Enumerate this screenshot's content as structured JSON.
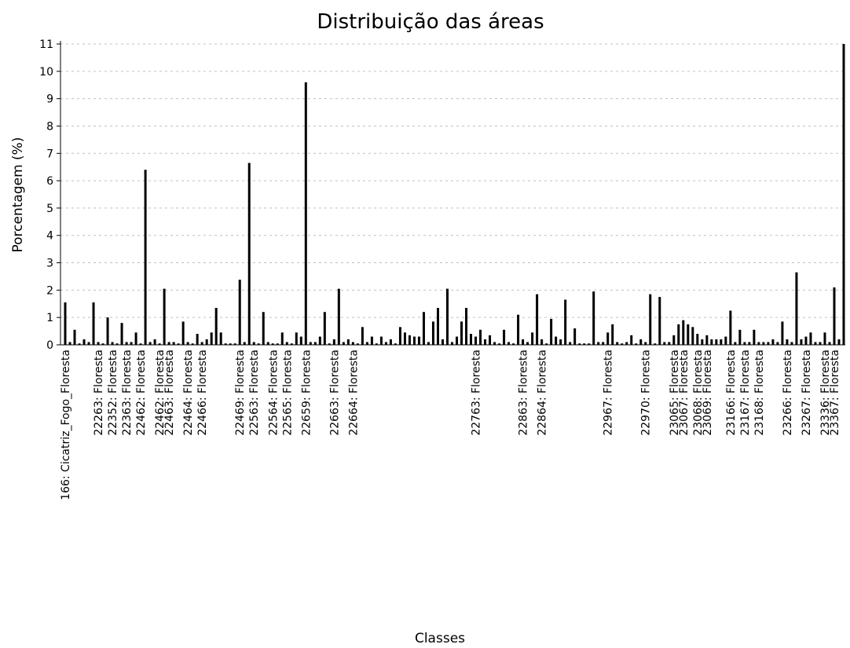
{
  "chart_data": {
    "type": "bar",
    "title": "Distribuição das áreas",
    "x_label": "Classes",
    "y_label": "Porcentagem (%)",
    "categories": [
      "166: Cicatriz_Fogo_Floresta",
      null,
      null,
      null,
      null,
      null,
      null,
      "22263: Floresta",
      null,
      null,
      "22352: Floresta",
      null,
      null,
      "22363: Floresta",
      null,
      null,
      "22462: Floresta",
      null,
      null,
      null,
      "22462: Floresta",
      null,
      "22463: Floresta",
      null,
      null,
      null,
      "22464: Floresta",
      null,
      null,
      "22466: Floresta",
      null,
      null,
      null,
      null,
      null,
      null,
      null,
      "22469: Floresta",
      null,
      null,
      "22563: Floresta",
      null,
      null,
      null,
      "22564: Floresta",
      null,
      null,
      "22565: Floresta",
      null,
      null,
      null,
      "22659: Floresta",
      null,
      null,
      null,
      null,
      null,
      "22663: Floresta",
      null,
      null,
      null,
      "22664: Floresta",
      null,
      null,
      null,
      null,
      null,
      null,
      null,
      null,
      null,
      null,
      null,
      null,
      null,
      null,
      null,
      null,
      null,
      null,
      null,
      null,
      null,
      null,
      null,
      null,
      null,
      "22763: Floresta",
      null,
      null,
      null,
      null,
      null,
      null,
      null,
      null,
      null,
      "22863: Floresta",
      null,
      null,
      null,
      "22864: Floresta",
      null,
      null,
      null,
      null,
      null,
      null,
      null,
      null,
      null,
      null,
      null,
      null,
      null,
      "22967: Floresta",
      null,
      null,
      null,
      null,
      null,
      null,
      null,
      "22970: Floresta",
      null,
      null,
      null,
      null,
      null,
      "23065: Floresta",
      null,
      "23067: Floresta",
      null,
      null,
      "23068: Floresta",
      null,
      "23069: Floresta",
      null,
      null,
      null,
      null,
      "23166: Floresta",
      null,
      null,
      "23167: Floresta",
      null,
      null,
      "23168: Floresta",
      null,
      null,
      null,
      null,
      null,
      "23266: Floresta",
      null,
      null,
      null,
      "23267: Floresta",
      null,
      null,
      null,
      "23336: Floresta",
      null,
      "23367: Floresta",
      null,
      null
    ],
    "values": [
      1.55,
      0.1,
      0.55,
      0.05,
      0.2,
      0.1,
      1.55,
      0.1,
      0.05,
      1.0,
      0.1,
      0.05,
      0.8,
      0.1,
      0.1,
      0.45,
      0.05,
      6.4,
      0.1,
      0.2,
      0.05,
      2.05,
      0.1,
      0.1,
      0.05,
      0.85,
      0.1,
      0.05,
      0.4,
      0.1,
      0.2,
      0.45,
      1.35,
      0.45,
      0.05,
      0.05,
      0.05,
      2.38,
      0.1,
      6.65,
      0.1,
      0.05,
      1.2,
      0.1,
      0.05,
      0.05,
      0.45,
      0.1,
      0.05,
      0.45,
      0.3,
      9.6,
      0.1,
      0.1,
      0.3,
      1.2,
      0.05,
      0.2,
      2.05,
      0.1,
      0.2,
      0.1,
      0.05,
      0.65,
      0.1,
      0.3,
      0.05,
      0.3,
      0.1,
      0.2,
      0.05,
      0.65,
      0.45,
      0.35,
      0.3,
      0.3,
      1.2,
      0.1,
      0.85,
      1.35,
      0.2,
      2.05,
      0.1,
      0.3,
      0.85,
      1.35,
      0.4,
      0.3,
      0.55,
      0.2,
      0.35,
      0.1,
      0.05,
      0.55,
      0.1,
      0.05,
      1.1,
      0.2,
      0.1,
      0.45,
      1.85,
      0.2,
      0.05,
      0.95,
      0.3,
      0.2,
      1.65,
      0.1,
      0.6,
      0.05,
      0.05,
      0.05,
      1.95,
      0.1,
      0.1,
      0.45,
      0.75,
      0.1,
      0.05,
      0.1,
      0.35,
      0.05,
      0.2,
      0.1,
      1.85,
      0.05,
      1.75,
      0.1,
      0.1,
      0.35,
      0.75,
      0.9,
      0.75,
      0.65,
      0.4,
      0.2,
      0.35,
      0.2,
      0.2,
      0.2,
      0.3,
      1.25,
      0.1,
      0.55,
      0.1,
      0.1,
      0.55,
      0.1,
      0.1,
      0.1,
      0.2,
      0.1,
      0.85,
      0.2,
      0.1,
      2.65,
      0.2,
      0.3,
      0.45,
      0.1,
      0.1,
      0.45,
      0.1,
      2.1,
      0.2,
      11
    ],
    "color": "#000000",
    "ylim": [
      0,
      11
    ],
    "yticks": [
      0,
      1,
      2,
      3,
      4,
      5,
      6,
      7,
      8,
      9,
      10,
      11
    ],
    "grid": true
  }
}
